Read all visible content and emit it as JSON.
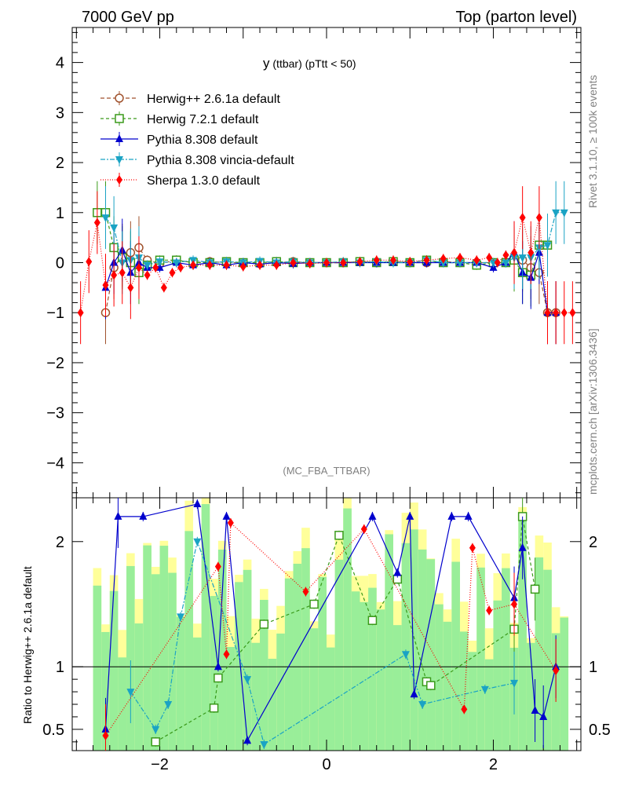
{
  "header": {
    "left": "7000 GeV pp",
    "right": "Top (parton level)"
  },
  "side": {
    "rivet": "Rivet 3.1.10, ≥ 100k events",
    "mcplots": "mcplots.cern.ch [arXiv:1306.3436]"
  },
  "plot": {
    "title_main": "y",
    "title_sub": " (ttbar)  (pTtt < 50)",
    "watermark": "(MC_FBA_TTBAR)"
  },
  "ratio": {
    "ylabel": "Ratio to Herwig++ 2.6.1a default"
  },
  "chart_data": [
    {
      "type": "line",
      "title": "y (ttbar) (pTtt < 50)",
      "xlabel": "",
      "ylabel": "",
      "xlim": [
        -3.05,
        3.05
      ],
      "ylim": [
        -4.7,
        4.7
      ],
      "xticks": [
        "−2",
        "0",
        "2"
      ],
      "yticks": [
        "−4",
        "−3",
        "−2",
        "−1",
        "0",
        "1",
        "2",
        "3",
        "4"
      ],
      "legend_position": "top-left",
      "series": [
        {
          "name": "Herwig++ 2.6.1a default",
          "color": "#a0522d",
          "marker": "circle-open",
          "dash": "5,3",
          "x": [
            -2.65,
            -2.55,
            -2.45,
            -2.35,
            -2.25,
            -2.15,
            -2.0,
            -1.8,
            -1.6,
            -1.4,
            -1.2,
            -1.0,
            -0.8,
            -0.6,
            -0.4,
            -0.2,
            0.0,
            0.2,
            0.4,
            0.6,
            0.8,
            1.0,
            1.2,
            1.4,
            1.6,
            1.8,
            2.0,
            2.15,
            2.25,
            2.35,
            2.45,
            2.55,
            2.65,
            2.75
          ],
          "y": [
            -1.0,
            -0.1,
            0.15,
            0.2,
            0.3,
            0.05,
            -0.02,
            0.05,
            0.0,
            0.02,
            0.0,
            0.0,
            -0.02,
            0.0,
            0.02,
            0.0,
            0.0,
            0.0,
            0.02,
            0.0,
            0.02,
            0.0,
            0.0,
            0.02,
            0.0,
            0.0,
            0.0,
            0.0,
            0.1,
            0.05,
            -0.1,
            -0.2,
            -1.0,
            -1.0
          ]
        },
        {
          "name": "Herwig 7.2.1 default",
          "color": "#3a9a1a",
          "marker": "square-open",
          "dash": "4,3",
          "x": [
            -2.75,
            -2.65,
            -2.55,
            -2.45,
            -2.35,
            -2.25,
            -2.15,
            -2.0,
            -1.8,
            -1.6,
            -1.4,
            -1.2,
            -1.0,
            -0.8,
            -0.6,
            -0.4,
            -0.2,
            0.0,
            0.2,
            0.4,
            0.6,
            0.8,
            1.0,
            1.2,
            1.4,
            1.6,
            1.8,
            2.0,
            2.15,
            2.25,
            2.35,
            2.45,
            2.55,
            2.65
          ],
          "y": [
            1.0,
            1.0,
            0.3,
            0.1,
            0.0,
            -0.2,
            -0.05,
            0.05,
            0.05,
            0.0,
            0.0,
            0.02,
            0.0,
            0.0,
            0.02,
            0.0,
            0.0,
            0.0,
            0.0,
            0.02,
            0.0,
            0.02,
            0.0,
            0.05,
            0.0,
            0.0,
            -0.05,
            0.0,
            0.0,
            0.05,
            -0.2,
            -0.25,
            0.35,
            0.35
          ]
        },
        {
          "name": "Pythia 8.308 default",
          "color": "#0000cd",
          "marker": "triangle-up",
          "dash": "",
          "x": [
            -2.65,
            -2.55,
            -2.45,
            -2.35,
            -2.25,
            -2.15,
            -2.0,
            -1.8,
            -1.6,
            -1.4,
            -1.2,
            -1.0,
            -0.8,
            -0.6,
            -0.4,
            -0.2,
            0.0,
            0.2,
            0.4,
            0.6,
            0.8,
            1.0,
            1.2,
            1.4,
            1.6,
            1.8,
            2.0,
            2.15,
            2.25,
            2.35,
            2.45,
            2.55,
            2.65,
            2.75
          ],
          "y": [
            -0.5,
            0.0,
            0.25,
            -0.2,
            0.0,
            -0.1,
            -0.1,
            0.0,
            -0.05,
            0.0,
            -0.05,
            0.0,
            -0.03,
            0.0,
            -0.02,
            0.0,
            0.0,
            0.0,
            0.0,
            0.0,
            0.0,
            0.0,
            0.0,
            0.0,
            0.0,
            0.0,
            -0.1,
            0.0,
            0.2,
            -0.2,
            -0.3,
            0.2,
            -1.0,
            -1.0
          ]
        },
        {
          "name": "Pythia 8.308 vincia-default",
          "color": "#1aa3c4",
          "marker": "triangle-down",
          "dash": "6,2,2,2",
          "x": [
            -2.65,
            -2.55,
            -2.45,
            -2.35,
            -2.25,
            -2.15,
            -2.0,
            -1.8,
            -1.6,
            -1.4,
            -1.2,
            -1.0,
            -0.8,
            -0.6,
            -0.4,
            -0.2,
            0.0,
            0.2,
            0.4,
            0.6,
            0.8,
            1.0,
            1.2,
            1.4,
            1.6,
            1.8,
            2.0,
            2.15,
            2.25,
            2.35,
            2.45,
            2.55,
            2.65,
            2.75,
            2.85
          ],
          "y": [
            0.9,
            0.7,
            0.0,
            0.05,
            0.1,
            -0.05,
            0.02,
            0.0,
            0.05,
            0.0,
            0.02,
            0.0,
            0.03,
            0.0,
            0.02,
            0.0,
            0.0,
            0.02,
            0.0,
            0.02,
            0.0,
            0.0,
            0.05,
            0.0,
            0.0,
            0.0,
            0.0,
            0.0,
            0.1,
            0.1,
            0.1,
            0.3,
            0.35,
            1.0,
            1.0
          ]
        },
        {
          "name": "Sherpa 1.3.0 default",
          "color": "#ff0000",
          "marker": "diamond",
          "dash": "1,2",
          "x": [
            -2.95,
            -2.85,
            -2.75,
            -2.65,
            -2.55,
            -2.45,
            -2.35,
            -2.25,
            -2.15,
            -2.05,
            -1.95,
            -1.85,
            -1.75,
            -1.6,
            -1.4,
            -1.2,
            -1.0,
            -0.8,
            -0.6,
            -0.4,
            -0.2,
            0.0,
            0.2,
            0.4,
            0.6,
            0.8,
            1.0,
            1.2,
            1.4,
            1.6,
            1.8,
            1.95,
            2.05,
            2.15,
            2.25,
            2.35,
            2.45,
            2.55,
            2.65,
            2.75,
            2.85,
            2.95
          ],
          "y": [
            -1.0,
            0.02,
            0.8,
            -0.45,
            -0.25,
            -0.2,
            -0.5,
            -0.1,
            -0.25,
            -0.1,
            -0.5,
            -0.2,
            -0.1,
            -0.05,
            -0.05,
            -0.05,
            -0.08,
            -0.05,
            -0.05,
            0.0,
            -0.02,
            0.0,
            0.0,
            0.02,
            0.05,
            0.05,
            0.02,
            0.05,
            0.08,
            0.1,
            0.05,
            0.1,
            0.0,
            0.15,
            0.2,
            0.9,
            0.2,
            0.9,
            -1.0,
            -1.0,
            -1.0,
            -1.0
          ]
        }
      ]
    },
    {
      "type": "line",
      "title": "",
      "ylabel": "Ratio to Herwig++ 2.6.1a default",
      "xlim": [
        -3.05,
        3.05
      ],
      "ylim": [
        0.33,
        2.35
      ],
      "xticks": [
        "−2",
        "0",
        "2"
      ],
      "yticks": [
        "0.5",
        "1",
        "2"
      ],
      "reference_line": 1,
      "series": [
        {
          "name": "Herwig 7.2.1 default",
          "color": "#3a9a1a",
          "marker": "square-open",
          "dash": "4,3",
          "x": [
            -2.05,
            -1.35,
            -1.3,
            -0.75,
            -0.15,
            0.15,
            0.55,
            0.85,
            1.2,
            1.25,
            2.25,
            2.35,
            2.5
          ],
          "y": [
            0.4,
            0.67,
            0.91,
            1.34,
            1.5,
            2.05,
            1.37,
            1.7,
            0.88,
            0.85,
            1.3,
            2.2,
            1.62
          ]
        },
        {
          "name": "Pythia 8.308 default",
          "color": "#0000cd",
          "marker": "triangle-up",
          "dash": "",
          "x": [
            -2.65,
            -2.5,
            -2.2,
            -1.55,
            -1.3,
            -1.2,
            -0.95,
            0.55,
            0.85,
            1.0,
            1.05,
            1.5,
            1.7,
            2.25,
            2.35,
            2.5,
            2.6,
            2.75
          ],
          "y": [
            0.5,
            2.2,
            2.2,
            2.3,
            1.0,
            2.2,
            0.41,
            2.2,
            1.75,
            2.2,
            0.78,
            2.2,
            2.2,
            1.55,
            1.95,
            0.65,
            0.6,
            1.0
          ]
        },
        {
          "name": "Pythia 8.308 vincia-default",
          "color": "#1aa3c4",
          "marker": "triangle-down",
          "dash": "6,2,2,2",
          "x": [
            -2.35,
            -2.05,
            -1.9,
            -1.75,
            -1.55,
            -0.95,
            -0.75,
            0.95,
            1.15,
            1.9,
            2.25
          ],
          "y": [
            0.8,
            0.5,
            0.7,
            1.4,
            2.0,
            0.9,
            0.38,
            1.1,
            0.7,
            0.82,
            0.87
          ]
        },
        {
          "name": "Sherpa 1.3.0 default",
          "color": "#ff0000",
          "marker": "diamond",
          "dash": "1,2",
          "x": [
            -2.65,
            -1.3,
            -1.2,
            -1.15,
            -0.25,
            0.45,
            1.65,
            1.75,
            1.95,
            2.25,
            2.75
          ],
          "y": [
            0.45,
            1.8,
            1.1,
            2.15,
            1.6,
            2.1,
            0.66,
            1.95,
            1.45,
            1.5,
            0.97
          ]
        }
      ]
    }
  ]
}
